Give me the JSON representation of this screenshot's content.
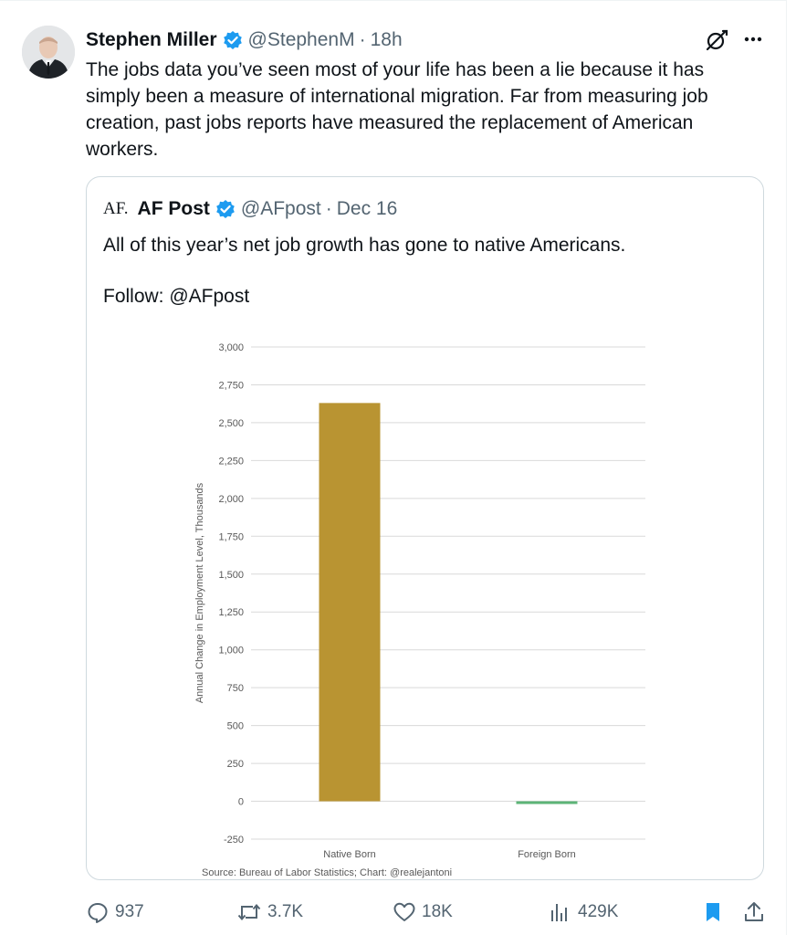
{
  "tweet": {
    "author": "Stephen Miller",
    "handle": "@StephenM",
    "separator": "·",
    "time": "18h",
    "text": "The jobs data you’ve seen most of your life has been a lie because it has simply been a measure of international migration. Far from measuring job creation, past jobs reports have measured the replacement of American workers."
  },
  "quote": {
    "logo": "AF.",
    "author": "AF Post",
    "handle": "@AFpost",
    "separator": "·",
    "date": "Dec 16",
    "text": "All of this year’s net job growth has gone to native Americans.",
    "follow": "Follow: @AFpost"
  },
  "chart_data": {
    "type": "bar",
    "categories": [
      "Native Born",
      "Foreign Born"
    ],
    "values": [
      2630,
      -15
    ],
    "colors": [
      "#b99432",
      "#5db477"
    ],
    "ylabel": "Annual Change in Employment Level, Thousands",
    "ylim": [
      -250,
      3000
    ],
    "yticks": [
      "-250",
      "0",
      "250",
      "500",
      "750",
      "1,000",
      "1,250",
      "1,500",
      "1,750",
      "2,000",
      "2,250",
      "2,500",
      "2,750",
      "3,000"
    ],
    "source": "Source: Bureau of Labor Statistics; Chart: @realejantoni",
    "grid": true
  },
  "actions": {
    "replies": "937",
    "reposts": "3.7K",
    "likes": "18K",
    "views": "429K"
  },
  "colors": {
    "verified": "#1d9bf0",
    "bookmark": "#1d9bf0",
    "secondary_text": "#536471"
  },
  "icons": [
    "verified-badge-icon",
    "grok-icon",
    "more-icon",
    "reply-icon",
    "repost-icon",
    "like-icon",
    "views-icon",
    "bookmark-icon",
    "share-icon"
  ]
}
